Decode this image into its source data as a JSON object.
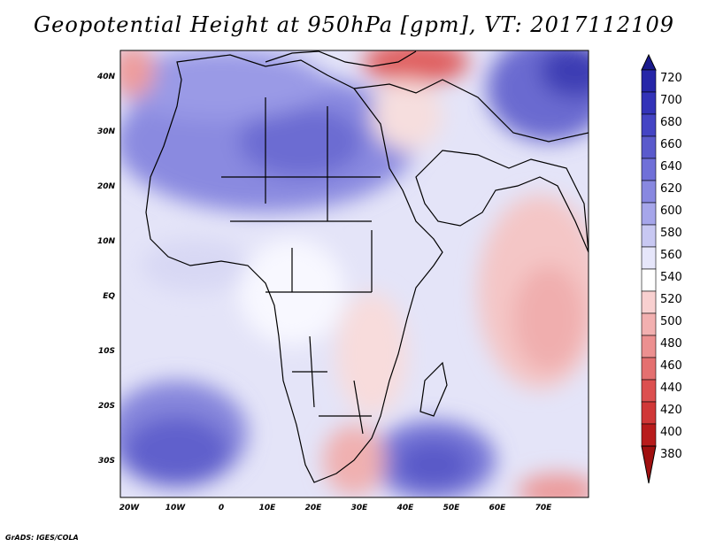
{
  "title": "Geopotential Height at 950hPa [gpm], VT: 2017112109",
  "footer": "GrADS: IGES/COLA",
  "map": {
    "lon_ticks": [
      "20W",
      "10W",
      "0",
      "10E",
      "20E",
      "30E",
      "40E",
      "50E",
      "60E",
      "70E"
    ],
    "lat_ticks": [
      "40N",
      "30N",
      "20N",
      "10N",
      "EQ",
      "10S",
      "20S",
      "30S"
    ]
  },
  "colorbar": {
    "labels": [
      "720",
      "700",
      "680",
      "660",
      "640",
      "620",
      "600",
      "580",
      "560",
      "540",
      "520",
      "500",
      "480",
      "460",
      "440",
      "420",
      "400",
      "380"
    ],
    "colors": [
      "#1a1a8c",
      "#2626a8",
      "#3333b8",
      "#4444c4",
      "#5a5acc",
      "#7070d8",
      "#8888e0",
      "#a6a6ea",
      "#c8c8f2",
      "#e6e6fa",
      "#ffffff",
      "#f8d0d0",
      "#f2b0b0",
      "#ec9090",
      "#e47070",
      "#dc5050",
      "#d03838",
      "#b81c1c",
      "#a01010"
    ]
  }
}
